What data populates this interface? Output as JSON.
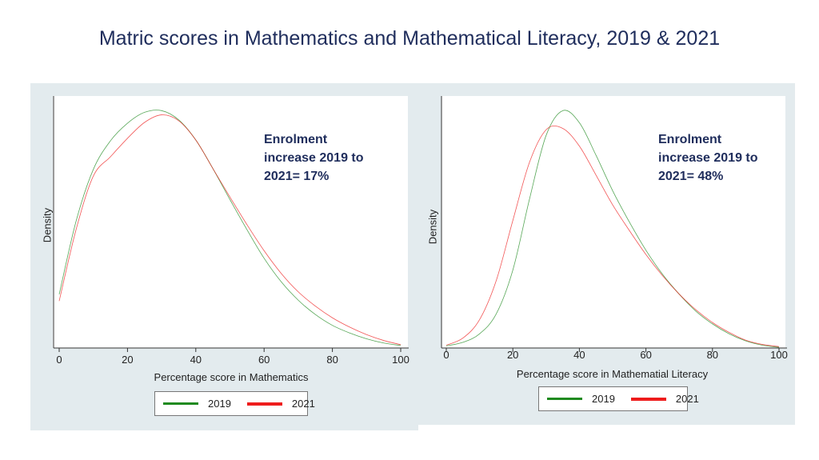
{
  "title": "Matric scores in Mathematics and Mathematical Literacy, 2019 & 2021",
  "colors": {
    "series_2019": "#1f8a1f",
    "series_2021": "#ee1c1c",
    "title": "#1f2d5c",
    "panel_bg": "#e3ebee"
  },
  "chart_data": [
    {
      "type": "line",
      "xlabel": "Percentage score in Mathematics",
      "ylabel": "Density",
      "xlim": [
        0,
        100
      ],
      "xticks": [
        0,
        20,
        40,
        60,
        80,
        100
      ],
      "annotation": "Enrolment\nincrease 2019 to\n2021= 17%",
      "legend_position": "bottom",
      "series": [
        {
          "name": "2019",
          "x": [
            0,
            5,
            10,
            15,
            20,
            25,
            30,
            35,
            40,
            45,
            50,
            55,
            60,
            65,
            70,
            75,
            80,
            85,
            90,
            95,
            100
          ],
          "values": [
            0.0064,
            0.0152,
            0.0213,
            0.0247,
            0.0268,
            0.0281,
            0.0283,
            0.0272,
            0.0248,
            0.0214,
            0.0177,
            0.0141,
            0.0107,
            0.0079,
            0.0057,
            0.004,
            0.0027,
            0.0018,
            0.0011,
            0.0006,
            0.0003
          ]
        },
        {
          "name": "2021",
          "x": [
            0,
            5,
            10,
            15,
            20,
            25,
            30,
            35,
            40,
            45,
            50,
            55,
            60,
            65,
            70,
            75,
            80,
            85,
            90,
            95,
            100
          ],
          "values": [
            0.0056,
            0.0142,
            0.0205,
            0.0228,
            0.025,
            0.0269,
            0.0278,
            0.0271,
            0.0248,
            0.0214,
            0.018,
            0.0147,
            0.0116,
            0.0089,
            0.0067,
            0.005,
            0.0036,
            0.0025,
            0.0016,
            0.0009,
            0.0004
          ]
        }
      ]
    },
    {
      "type": "line",
      "xlabel": "Percentage score in Mathematial Literacy",
      "ylabel": "Density",
      "xlim": [
        0,
        100
      ],
      "xticks": [
        0,
        20,
        40,
        60,
        80,
        100
      ],
      "annotation": "Enrolment\nincrease 2019 to\n2021= 48%",
      "legend_position": "bottom",
      "series": [
        {
          "name": "2019",
          "x": [
            0,
            5,
            10,
            15,
            20,
            25,
            30,
            35,
            40,
            45,
            50,
            55,
            60,
            65,
            70,
            75,
            80,
            85,
            90,
            95,
            100
          ],
          "values": [
            0.0003,
            0.0008,
            0.002,
            0.0048,
            0.011,
            0.021,
            0.03,
            0.0335,
            0.0318,
            0.0272,
            0.0222,
            0.0178,
            0.0138,
            0.0104,
            0.0076,
            0.0052,
            0.0034,
            0.002,
            0.001,
            0.0004,
            0.0001
          ]
        },
        {
          "name": "2021",
          "x": [
            0,
            5,
            10,
            15,
            20,
            25,
            30,
            35,
            40,
            45,
            50,
            55,
            60,
            65,
            70,
            75,
            80,
            85,
            90,
            95,
            100
          ],
          "values": [
            0.0004,
            0.0014,
            0.004,
            0.0095,
            0.018,
            0.0262,
            0.0308,
            0.031,
            0.0285,
            0.0244,
            0.0202,
            0.0166,
            0.0132,
            0.0102,
            0.0076,
            0.0054,
            0.0036,
            0.0022,
            0.0011,
            0.0005,
            0.0002
          ]
        }
      ]
    }
  ]
}
